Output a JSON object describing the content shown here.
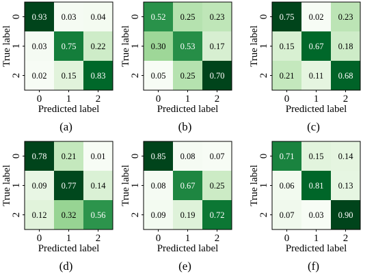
{
  "figure": {
    "title": "",
    "panels_layout": "2 rows x 3 columns"
  },
  "colors": {
    "low": "#f7fcf5",
    "high": "#00441b",
    "text_dark": "#000000",
    "text_light": "#ffffff"
  },
  "chart_data": [
    {
      "type": "heatmap",
      "panel_label": "(a)",
      "xlabel": "Predicted label",
      "ylabel": "True label",
      "x_ticks": [
        "0",
        "1",
        "2"
      ],
      "y_ticks": [
        "0",
        "1",
        "2"
      ],
      "grid": false,
      "value_range": [
        0,
        1
      ],
      "values": [
        [
          0.93,
          0.03,
          0.04
        ],
        [
          0.03,
          0.75,
          0.22
        ],
        [
          0.02,
          0.15,
          0.83
        ]
      ],
      "cell_labels": [
        [
          "0.93",
          "0.03",
          "0.04"
        ],
        [
          "0.03",
          "0.75",
          "0.22"
        ],
        [
          "0.02",
          "0.15",
          "0.83"
        ]
      ]
    },
    {
      "type": "heatmap",
      "panel_label": "(b)",
      "xlabel": "Predicted label",
      "ylabel": "True label",
      "x_ticks": [
        "0",
        "1",
        "2"
      ],
      "y_ticks": [
        "0",
        "1",
        "2"
      ],
      "grid": false,
      "value_range": [
        0,
        1
      ],
      "values": [
        [
          0.52,
          0.25,
          0.23
        ],
        [
          0.3,
          0.53,
          0.17
        ],
        [
          0.05,
          0.25,
          0.7
        ]
      ],
      "cell_labels": [
        [
          "0.52",
          "0.25",
          "0.23"
        ],
        [
          "0.30",
          "0.53",
          "0.17"
        ],
        [
          "0.05",
          "0.25",
          "0.70"
        ]
      ]
    },
    {
      "type": "heatmap",
      "panel_label": "(c)",
      "xlabel": "Predicted label",
      "ylabel": "True label",
      "x_ticks": [
        "0",
        "1",
        "2"
      ],
      "y_ticks": [
        "0",
        "1",
        "2"
      ],
      "grid": false,
      "value_range": [
        0,
        1
      ],
      "values": [
        [
          0.75,
          0.02,
          0.23
        ],
        [
          0.15,
          0.67,
          0.18
        ],
        [
          0.21,
          0.11,
          0.68
        ]
      ],
      "cell_labels": [
        [
          "0.75",
          "0.02",
          "0.23"
        ],
        [
          "0.15",
          "0.67",
          "0.18"
        ],
        [
          "0.21",
          "0.11",
          "0.68"
        ]
      ]
    },
    {
      "type": "heatmap",
      "panel_label": "(d)",
      "xlabel": "Predicted label",
      "ylabel": "True label",
      "x_ticks": [
        "0",
        "1",
        "2"
      ],
      "y_ticks": [
        "0",
        "1",
        "2"
      ],
      "grid": false,
      "value_range": [
        0,
        1
      ],
      "values": [
        [
          0.78,
          0.21,
          0.01
        ],
        [
          0.09,
          0.77,
          0.14
        ],
        [
          0.12,
          0.32,
          0.56
        ]
      ],
      "cell_labels": [
        [
          "0.78",
          "0.21",
          "0.01"
        ],
        [
          "0.09",
          "0.77",
          "0.14"
        ],
        [
          "0.12",
          "0.32",
          "0.56"
        ]
      ]
    },
    {
      "type": "heatmap",
      "panel_label": "(e)",
      "xlabel": "Predicted label",
      "ylabel": "True label",
      "x_ticks": [
        "0",
        "1",
        "2"
      ],
      "y_ticks": [
        "0",
        "1",
        "2"
      ],
      "grid": false,
      "value_range": [
        0,
        1
      ],
      "values": [
        [
          0.85,
          0.08,
          0.07
        ],
        [
          0.08,
          0.67,
          0.25
        ],
        [
          0.09,
          0.19,
          0.72
        ]
      ],
      "cell_labels": [
        [
          "0.85",
          "0.08",
          "0.07"
        ],
        [
          "0.08",
          "0.67",
          "0.25"
        ],
        [
          "0.09",
          "0.19",
          "0.72"
        ]
      ]
    },
    {
      "type": "heatmap",
      "panel_label": "(f)",
      "xlabel": "Predicted label",
      "ylabel": "True label",
      "x_ticks": [
        "0",
        "1",
        "2"
      ],
      "y_ticks": [
        "0",
        "1",
        "2"
      ],
      "grid": false,
      "value_range": [
        0,
        1
      ],
      "values": [
        [
          0.71,
          0.15,
          0.14
        ],
        [
          0.06,
          0.81,
          0.13
        ],
        [
          0.07,
          0.03,
          0.9
        ]
      ],
      "cell_labels": [
        [
          "0.71",
          "0.15",
          "0.14"
        ],
        [
          "0.06",
          "0.81",
          "0.13"
        ],
        [
          "0.07",
          "0.03",
          "0.90"
        ]
      ]
    }
  ]
}
